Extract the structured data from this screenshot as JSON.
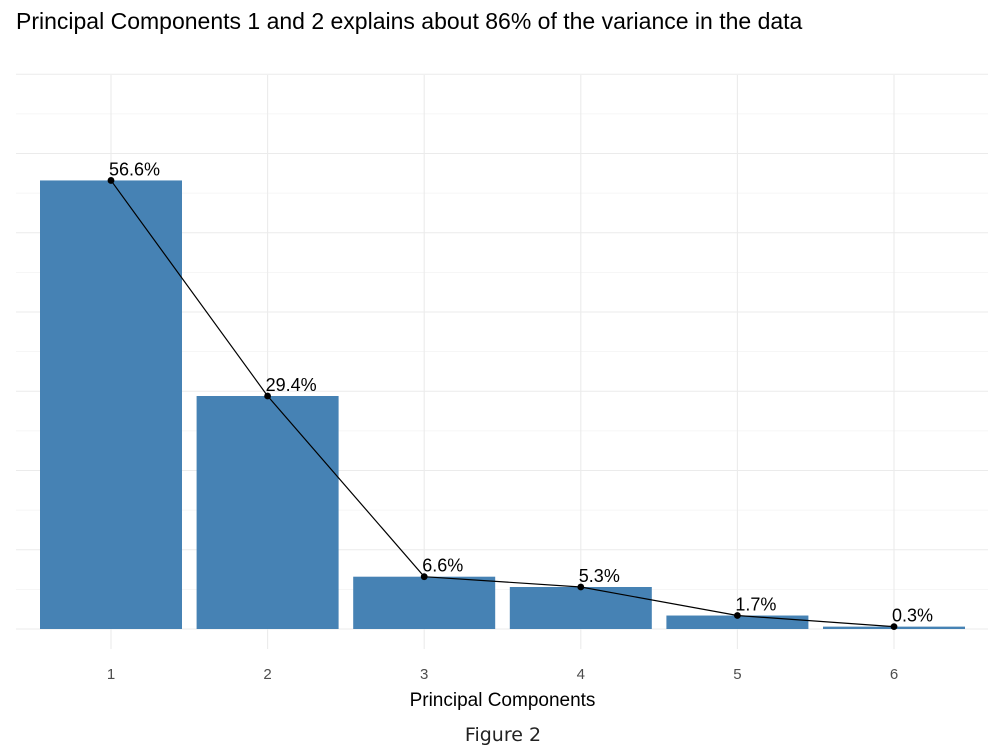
{
  "chart_data": {
    "type": "bar",
    "title": "Principal Components 1 and 2 explains about 86% of the variance in the data",
    "xlabel": "Principal Components",
    "ylabel": "",
    "categories": [
      "1",
      "2",
      "3",
      "4",
      "5",
      "6"
    ],
    "values": [
      56.6,
      29.4,
      6.6,
      5.3,
      1.7,
      0.3
    ],
    "data_labels": [
      "56.6%",
      "29.4%",
      "6.6%",
      "5.3%",
      "1.7%",
      "0.3%"
    ],
    "overlay": "line with points",
    "ylim": [
      0,
      70
    ],
    "grid": true,
    "y_tick_labels_shown": false,
    "bar_color": "#4682B4",
    "line_color": "#000000"
  },
  "caption": "Figure 2"
}
